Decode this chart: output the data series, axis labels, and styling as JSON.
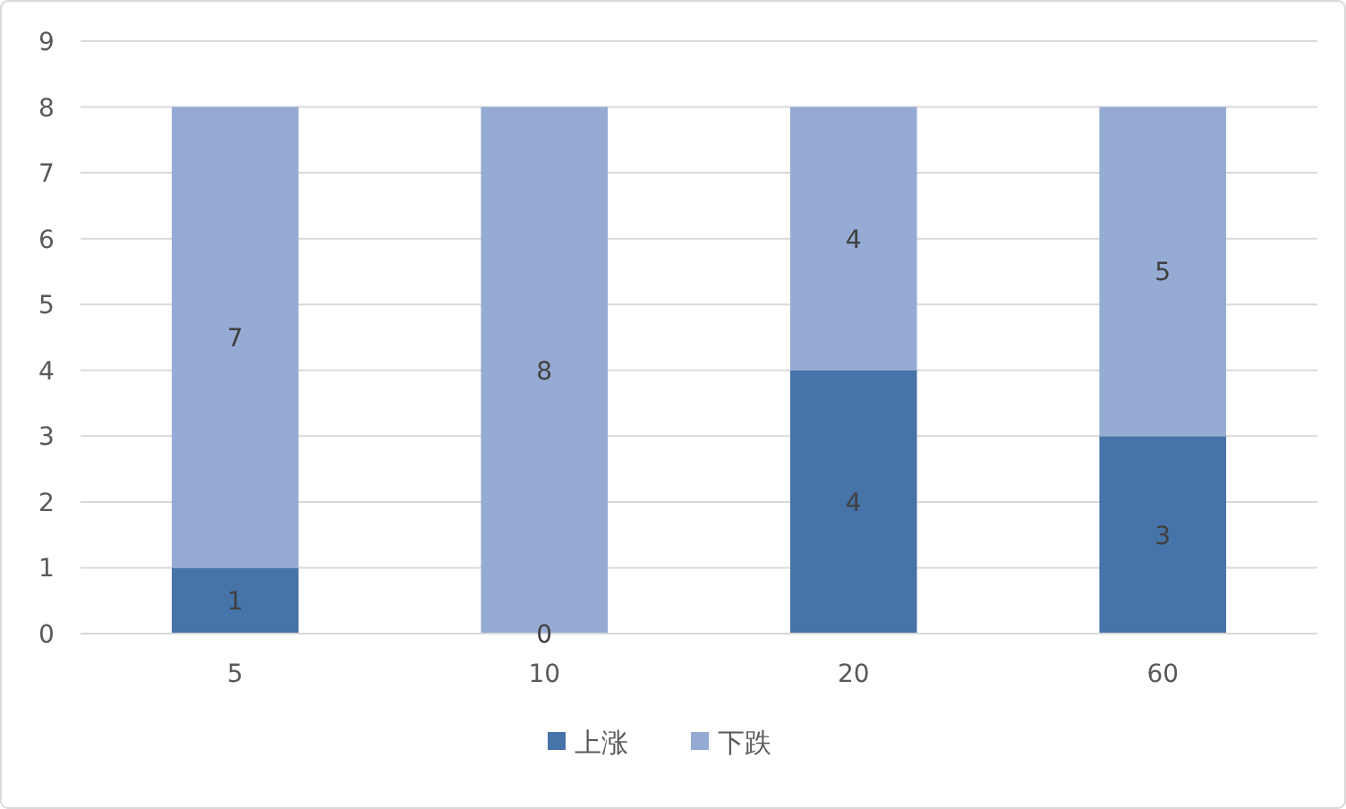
{
  "chart_data": {
    "type": "bar",
    "stacked": true,
    "categories": [
      "5",
      "10",
      "20",
      "60"
    ],
    "series": [
      {
        "name": "上涨",
        "color": "#4673a8",
        "values": [
          1,
          0,
          4,
          3
        ]
      },
      {
        "name": "下跌",
        "color": "#95abd3",
        "values": [
          7,
          8,
          4,
          5
        ]
      }
    ],
    "ylim": [
      0,
      9
    ],
    "yticks": [
      0,
      1,
      2,
      3,
      4,
      5,
      6,
      7,
      8,
      9
    ],
    "grid": "y",
    "legend": "bottom",
    "data_labels": true
  }
}
